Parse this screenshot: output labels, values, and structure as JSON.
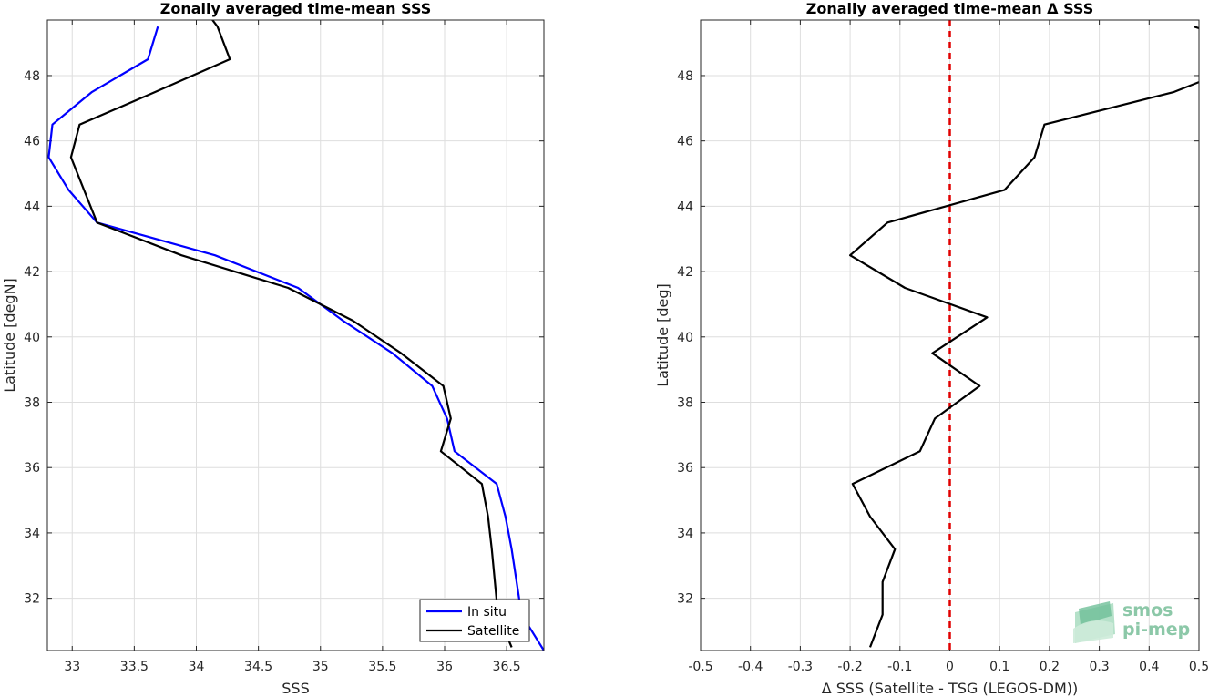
{
  "chart_data": [
    {
      "type": "line",
      "title": "Zonally averaged time-mean SSS",
      "xlabel": "SSS",
      "ylabel": "Latitude [degN]",
      "xlim": [
        32.8,
        36.8
      ],
      "ylim": [
        30.4,
        49.7
      ],
      "xticks": [
        "33",
        "33.5",
        "34",
        "34.5",
        "35",
        "35.5",
        "36",
        "36.5"
      ],
      "yticks": [
        "32",
        "34",
        "36",
        "38",
        "40",
        "42",
        "44",
        "46",
        "48"
      ],
      "grid": true,
      "legend_position": "bottom-right",
      "series": [
        {
          "name": "In situ",
          "color": "#0000ff",
          "points": [
            [
              36.8,
              30.4
            ],
            [
              36.62,
              31.5
            ],
            [
              36.54,
              33.5
            ],
            [
              36.49,
              34.5
            ],
            [
              36.42,
              35.5
            ],
            [
              36.08,
              36.5
            ],
            [
              36.02,
              37.5
            ],
            [
              35.9,
              38.5
            ],
            [
              35.58,
              39.5
            ],
            [
              35.18,
              40.5
            ],
            [
              34.82,
              41.5
            ],
            [
              34.15,
              42.5
            ],
            [
              33.2,
              43.5
            ],
            [
              32.97,
              44.5
            ],
            [
              32.81,
              45.5
            ],
            [
              32.84,
              46.5
            ],
            [
              33.16,
              47.5
            ],
            [
              33.61,
              48.5
            ],
            [
              33.69,
              49.5
            ]
          ]
        },
        {
          "name": "Satellite",
          "color": "#000000",
          "points": [
            [
              36.54,
              30.5
            ],
            [
              36.43,
              31.5
            ],
            [
              36.38,
              33.5
            ],
            [
              36.35,
              34.5
            ],
            [
              36.3,
              35.5
            ],
            [
              35.97,
              36.5
            ],
            [
              36.05,
              37.5
            ],
            [
              35.99,
              38.5
            ],
            [
              35.65,
              39.5
            ],
            [
              35.26,
              40.5
            ],
            [
              34.74,
              41.5
            ],
            [
              33.88,
              42.5
            ],
            [
              33.2,
              43.5
            ],
            [
              32.99,
              45.5
            ],
            [
              33.06,
              46.5
            ],
            [
              33.67,
              47.5
            ],
            [
              34.27,
              48.5
            ],
            [
              34.17,
              49.5
            ],
            [
              34.12,
              49.75
            ]
          ]
        }
      ]
    },
    {
      "type": "line",
      "title": "Zonally averaged time-mean Δ SSS",
      "xlabel": "Δ SSS (Satellite - TSG (LEGOS-DM))",
      "ylabel": "Latitude [deg]",
      "xlim": [
        -0.5,
        0.5
      ],
      "ylim": [
        30.4,
        49.7
      ],
      "xticks": [
        "-0.5",
        "-0.4",
        "-0.3",
        "-0.2",
        "-0.1",
        "0",
        "0.1",
        "0.2",
        "0.3",
        "0.4",
        "0.5"
      ],
      "yticks": [
        "32",
        "34",
        "36",
        "38",
        "40",
        "42",
        "44",
        "46",
        "48"
      ],
      "grid": true,
      "reference_line": {
        "x": 0,
        "color": "#e00000",
        "style": "dashed"
      },
      "series": [
        {
          "name": "",
          "color": "#000000",
          "points": [
            [
              -0.16,
              30.5
            ],
            [
              -0.135,
              31.5
            ],
            [
              -0.135,
              32.5
            ],
            [
              -0.11,
              33.5
            ],
            [
              -0.16,
              34.5
            ],
            [
              -0.195,
              35.5
            ],
            [
              -0.06,
              36.5
            ],
            [
              -0.03,
              37.5
            ],
            [
              0.06,
              38.5
            ],
            [
              -0.035,
              39.5
            ],
            [
              0.075,
              40.6
            ],
            [
              -0.09,
              41.5
            ],
            [
              -0.2,
              42.5
            ],
            [
              -0.125,
              43.5
            ],
            [
              0.11,
              44.5
            ],
            [
              0.17,
              45.5
            ],
            [
              0.19,
              46.5
            ],
            [
              0.45,
              47.5
            ],
            [
              0.5,
              47.8
            ]
          ]
        },
        {
          "name": "",
          "color": "#000000",
          "points": [
            [
              0.49,
              49.5
            ],
            [
              0.5,
              49.45
            ]
          ]
        }
      ]
    }
  ],
  "logo": {
    "line1": "smos",
    "line2": "pi-mep"
  }
}
